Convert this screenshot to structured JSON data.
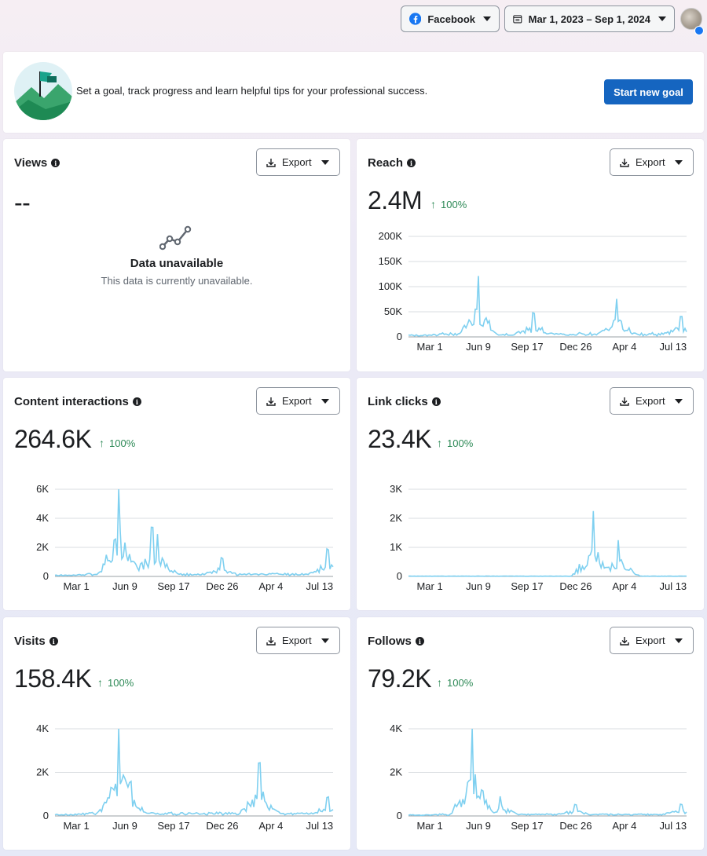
{
  "topbar": {
    "platform_label": "Facebook",
    "date_range_label": "Mar 1, 2023 – Sep 1, 2024"
  },
  "goal": {
    "text": "Set a goal, track progress and learn helpful tips for your professional success.",
    "button_label": "Start new goal"
  },
  "export_label": "Export",
  "x_ticks": [
    "Mar 1",
    "Jun 9",
    "Sep 17",
    "Dec 26",
    "Apr 4",
    "Jul 13"
  ],
  "views": {
    "title": "Views",
    "value": "--",
    "unavailable_title": "Data unavailable",
    "unavailable_sub": "This data is currently unavailable."
  },
  "reach": {
    "title": "Reach",
    "value": "2.4M",
    "delta": "100%"
  },
  "content_interactions": {
    "title": "Content interactions",
    "value": "264.6K",
    "delta": "100%"
  },
  "link_clicks": {
    "title": "Link clicks",
    "value": "23.4K",
    "delta": "100%"
  },
  "visits": {
    "title": "Visits",
    "value": "158.4K",
    "delta": "100%"
  },
  "follows": {
    "title": "Follows",
    "value": "79.2K",
    "delta": "100%"
  },
  "colors": {
    "line": "#7fd0f0",
    "accent": "#1565c0",
    "positive": "#2e8a57"
  },
  "chart_data": [
    {
      "type": "line",
      "name": "Reach",
      "x_ticks": [
        "Mar 1",
        "Jun 9",
        "Sep 17",
        "Dec 26",
        "Apr 4",
        "Jul 13"
      ],
      "y_ticks": [
        "0",
        "50K",
        "100K",
        "150K",
        "200K"
      ],
      "ylim": [
        0,
        200000
      ],
      "peaks": [
        [
          0.25,
          120000
        ],
        [
          0.45,
          45000
        ],
        [
          0.75,
          75000
        ],
        [
          0.98,
          40000
        ]
      ],
      "baseline": 3000
    },
    {
      "type": "line",
      "name": "Content interactions",
      "x_ticks": [
        "Mar 1",
        "Jun 9",
        "Sep 17",
        "Dec 26",
        "Apr 4",
        "Jul 13"
      ],
      "y_ticks": [
        "0",
        "2K",
        "4K",
        "6K"
      ],
      "ylim": [
        0,
        6500
      ],
      "peaks": [
        [
          0.23,
          6300
        ],
        [
          0.35,
          3300
        ],
        [
          0.37,
          2900
        ],
        [
          0.6,
          1200
        ],
        [
          0.98,
          1800
        ]
      ],
      "baseline": 80
    },
    {
      "type": "line",
      "name": "Link clicks",
      "x_ticks": [
        "Mar 1",
        "Jun 9",
        "Sep 17",
        "Dec 26",
        "Apr 4",
        "Jul 13"
      ],
      "y_ticks": [
        "0",
        "1K",
        "2K",
        "3K"
      ],
      "ylim": [
        0,
        3000
      ],
      "peaks": [
        [
          0.665,
          2250
        ],
        [
          0.755,
          1250
        ]
      ],
      "baseline": 10
    },
    {
      "type": "line",
      "name": "Visits",
      "x_ticks": [
        "Mar 1",
        "Jun 9",
        "Sep 17",
        "Dec 26",
        "Apr 4",
        "Jul 13"
      ],
      "y_ticks": [
        "0",
        "2K",
        "4K"
      ],
      "ylim": [
        0,
        4700
      ],
      "peaks": [
        [
          0.23,
          4400
        ],
        [
          0.27,
          1500
        ],
        [
          0.735,
          2400
        ],
        [
          0.98,
          800
        ]
      ],
      "baseline": 60
    },
    {
      "type": "line",
      "name": "Follows",
      "x_ticks": [
        "Mar 1",
        "Jun 9",
        "Sep 17",
        "Dec 26",
        "Apr 4",
        "Jul 13"
      ],
      "y_ticks": [
        "0",
        "2K",
        "4K"
      ],
      "ylim": [
        0,
        4700
      ],
      "peaks": [
        [
          0.23,
          4200
        ],
        [
          0.33,
          900
        ],
        [
          0.6,
          500
        ],
        [
          0.98,
          500
        ]
      ],
      "baseline": 40
    }
  ]
}
